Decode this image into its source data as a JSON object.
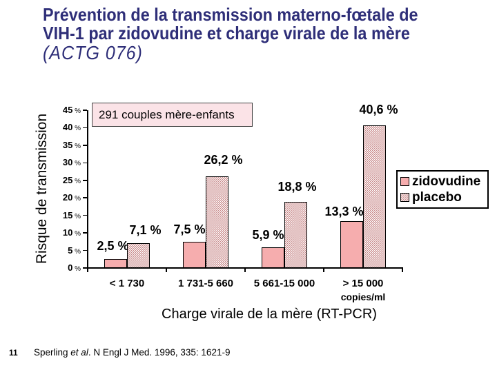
{
  "slide": {
    "title_line1": "Prévention de la transmission materno-fœtale de",
    "title_line2": "VIH-1 par zidovudine et charge virale de la mère",
    "title_line3": "(ACTG 076)",
    "page_number": "11",
    "citation": {
      "prefix": "Sperling ",
      "italic": "et al",
      "suffix": ". N Engl J Med. 1996, 335: 1621-9"
    }
  },
  "colors": {
    "title_text": "#2e2e78",
    "zidovudine_fill": "#f6adae",
    "placebo_hatch": "#c8898a",
    "annotation_bg": "#fbe3e7",
    "axis": "#000000"
  },
  "chart_data": {
    "type": "bar",
    "annotation": "291 couples mère-enfants",
    "ylabel": "Risque de transmission",
    "xlabel": "Charge virale de la mère (RT-PCR)",
    "x_unit": "copies/ml",
    "categories": [
      "< 1 730",
      "1 731-5 660",
      "5 661-15 000",
      "> 15 000"
    ],
    "series": [
      {
        "name": "zidovudine",
        "style": "solid",
        "values": [
          2.5,
          7.5,
          5.9,
          13.3
        ],
        "labels": [
          "2,5 %",
          "7,5 %",
          "5,9 %",
          "13,3 %"
        ]
      },
      {
        "name": "placebo",
        "style": "checker",
        "values": [
          7.1,
          26.2,
          18.8,
          40.6
        ],
        "labels": [
          "7,1 %",
          "26,2 %",
          "18,8 %",
          "40,6 %"
        ]
      }
    ],
    "ylim": [
      0,
      45
    ],
    "ytick_step": 5,
    "ytick_suffix": "%",
    "grid": false,
    "legend_position": "middle-right"
  }
}
